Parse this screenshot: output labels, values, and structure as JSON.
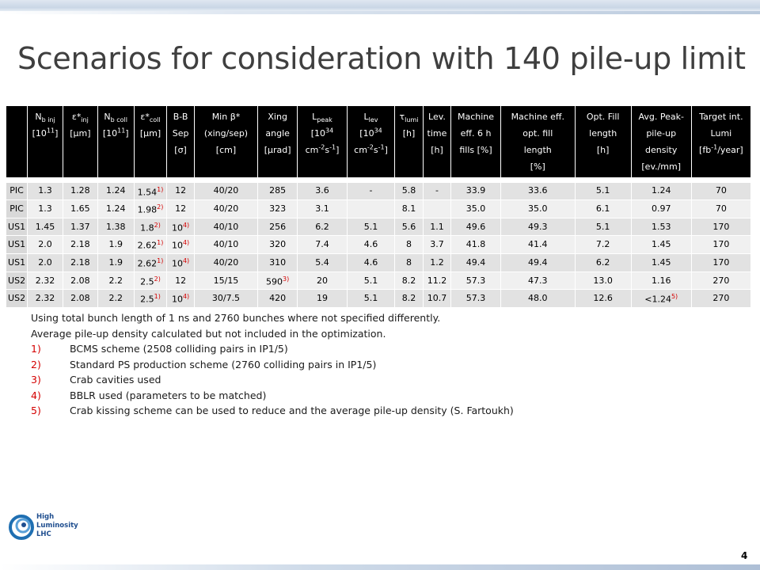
{
  "title": "Scenarios for consideration with 140 pile-up limit",
  "table": {
    "headers": [
      {
        "main": "",
        "parts": []
      },
      {
        "parts": [
          [
            "N",
            "b inj",
            ""
          ],
          [
            "[10",
            "",
            "11"
          ],
          [
            "]",
            "",
            ""
          ]
        ]
      },
      {
        "parts": [
          [
            "ε*",
            "inj",
            ""
          ],
          [
            "[μm]",
            "",
            ""
          ]
        ]
      },
      {
        "parts": [
          [
            "N",
            "b coll",
            ""
          ],
          [
            "[10",
            "",
            "11"
          ],
          [
            "]",
            "",
            ""
          ]
        ]
      },
      {
        "parts": [
          [
            "ε*",
            "coll",
            ""
          ],
          [
            "[μm]",
            "",
            ""
          ]
        ]
      },
      {
        "parts": [
          [
            "B-B",
            "",
            ""
          ],
          [
            "Sep",
            "",
            ""
          ],
          [
            "[σ]",
            "",
            ""
          ]
        ]
      },
      {
        "parts": [
          [
            "Min β*",
            "",
            ""
          ],
          [
            "(xing/sep)",
            "",
            ""
          ],
          [
            "[cm]",
            "",
            ""
          ]
        ]
      },
      {
        "parts": [
          [
            "Xing",
            "",
            ""
          ],
          [
            "angle",
            "",
            ""
          ],
          [
            "[μrad]",
            "",
            ""
          ]
        ]
      },
      {
        "parts": [
          [
            "L",
            "peak",
            ""
          ],
          [
            "[10",
            "",
            "34"
          ],
          [
            "cm",
            "",
            "-2"
          ],
          [
            "s",
            "",
            "-1"
          ],
          [
            "]",
            "",
            ""
          ]
        ]
      },
      {
        "parts": [
          [
            "L",
            "lev",
            ""
          ],
          [
            "[10",
            "",
            "34"
          ],
          [
            "cm",
            "",
            "-2"
          ],
          [
            "s",
            "",
            "-1"
          ],
          [
            "]",
            "",
            ""
          ]
        ]
      },
      {
        "parts": [
          [
            "τ",
            "lumi",
            ""
          ],
          [
            "[h]",
            "",
            ""
          ]
        ]
      },
      {
        "parts": [
          [
            "Lev.",
            "",
            ""
          ],
          [
            "time",
            "",
            ""
          ],
          [
            "[h]",
            "",
            ""
          ]
        ]
      },
      {
        "parts": [
          [
            "Machine",
            "",
            ""
          ],
          [
            "eff. 6 h",
            "",
            ""
          ],
          [
            "fills [%]",
            "",
            ""
          ]
        ]
      },
      {
        "parts": [
          [
            "Machine eff.",
            "",
            ""
          ],
          [
            "opt. fill",
            "",
            ""
          ],
          [
            "length",
            "",
            ""
          ],
          [
            "[%]",
            "",
            ""
          ]
        ]
      },
      {
        "parts": [
          [
            "Opt. Fill",
            "",
            ""
          ],
          [
            "length",
            "",
            ""
          ],
          [
            "[h]",
            "",
            ""
          ]
        ]
      },
      {
        "parts": [
          [
            "Avg. Peak-",
            "",
            ""
          ],
          [
            "pile-up",
            "",
            ""
          ],
          [
            "density",
            "",
            ""
          ],
          [
            "[ev./mm]",
            "",
            ""
          ]
        ]
      },
      {
        "parts": [
          [
            "Target int.",
            "",
            ""
          ],
          [
            "Lumi",
            "",
            ""
          ],
          [
            "[fb",
            "",
            "-1"
          ],
          [
            "/year]",
            "",
            ""
          ]
        ]
      }
    ],
    "rows": [
      [
        [
          "PIC",
          ""
        ],
        [
          "1.3",
          ""
        ],
        [
          "1.28",
          ""
        ],
        [
          "1.24",
          ""
        ],
        [
          "1.54",
          "1)"
        ],
        [
          "12",
          ""
        ],
        [
          "40/20",
          ""
        ],
        [
          "285",
          ""
        ],
        [
          "3.6",
          ""
        ],
        [
          "-",
          ""
        ],
        [
          "5.8",
          ""
        ],
        [
          "-",
          ""
        ],
        [
          "33.9",
          ""
        ],
        [
          "33.6",
          ""
        ],
        [
          "5.1",
          ""
        ],
        [
          "1.24",
          ""
        ],
        [
          "70",
          ""
        ]
      ],
      [
        [
          "PIC",
          ""
        ],
        [
          "1.3",
          ""
        ],
        [
          "1.65",
          ""
        ],
        [
          "1.24",
          ""
        ],
        [
          "1.98",
          "2)"
        ],
        [
          "12",
          ""
        ],
        [
          "40/20",
          ""
        ],
        [
          "323",
          ""
        ],
        [
          "3.1",
          ""
        ],
        [
          "",
          ""
        ],
        [
          "8.1",
          ""
        ],
        [
          "",
          ""
        ],
        [
          "35.0",
          ""
        ],
        [
          "35.0",
          ""
        ],
        [
          "6.1",
          ""
        ],
        [
          "0.97",
          ""
        ],
        [
          "70",
          ""
        ]
      ],
      [
        [
          "US1",
          ""
        ],
        [
          "1.45",
          ""
        ],
        [
          "1.37",
          ""
        ],
        [
          "1.38",
          ""
        ],
        [
          "1.8",
          "2)"
        ],
        [
          "10",
          "4)"
        ],
        [
          "40/10",
          ""
        ],
        [
          "256",
          ""
        ],
        [
          "6.2",
          ""
        ],
        [
          "5.1",
          ""
        ],
        [
          "5.6",
          ""
        ],
        [
          "1.1",
          ""
        ],
        [
          "49.6",
          ""
        ],
        [
          "49.3",
          ""
        ],
        [
          "5.1",
          ""
        ],
        [
          "1.53",
          ""
        ],
        [
          "170",
          ""
        ]
      ],
      [
        [
          "US1",
          ""
        ],
        [
          "2.0",
          ""
        ],
        [
          "2.18",
          ""
        ],
        [
          "1.9",
          ""
        ],
        [
          "2.62",
          "1)"
        ],
        [
          "10",
          "4)"
        ],
        [
          "40/10",
          ""
        ],
        [
          "320",
          ""
        ],
        [
          "7.4",
          ""
        ],
        [
          "4.6",
          ""
        ],
        [
          "8",
          ""
        ],
        [
          "3.7",
          ""
        ],
        [
          "41.8",
          ""
        ],
        [
          "41.4",
          ""
        ],
        [
          "7.2",
          ""
        ],
        [
          "1.45",
          ""
        ],
        [
          "170",
          ""
        ]
      ],
      [
        [
          "US1",
          ""
        ],
        [
          "2.0",
          ""
        ],
        [
          "2.18",
          ""
        ],
        [
          "1.9",
          ""
        ],
        [
          "2.62",
          "1)"
        ],
        [
          "10",
          "4)"
        ],
        [
          "40/20",
          ""
        ],
        [
          "310",
          ""
        ],
        [
          "5.4",
          ""
        ],
        [
          "4.6",
          ""
        ],
        [
          "8",
          ""
        ],
        [
          "1.2",
          ""
        ],
        [
          "49.4",
          ""
        ],
        [
          "49.4",
          ""
        ],
        [
          "6.2",
          ""
        ],
        [
          "1.45",
          ""
        ],
        [
          "170",
          ""
        ]
      ],
      [
        [
          "US2",
          ""
        ],
        [
          "2.32",
          ""
        ],
        [
          "2.08",
          ""
        ],
        [
          "2.2",
          ""
        ],
        [
          "2.5",
          "2)"
        ],
        [
          "12",
          ""
        ],
        [
          "15/15",
          ""
        ],
        [
          "590",
          "3)"
        ],
        [
          "20",
          ""
        ],
        [
          "5.1",
          ""
        ],
        [
          "8.2",
          ""
        ],
        [
          "11.2",
          ""
        ],
        [
          "57.3",
          ""
        ],
        [
          "47.3",
          ""
        ],
        [
          "13.0",
          ""
        ],
        [
          "1.16",
          ""
        ],
        [
          "270",
          ""
        ]
      ],
      [
        [
          "US2",
          ""
        ],
        [
          "2.32",
          ""
        ],
        [
          "2.08",
          ""
        ],
        [
          "2.2",
          ""
        ],
        [
          "2.5",
          "1)"
        ],
        [
          "10",
          "4)"
        ],
        [
          "30/7.5",
          ""
        ],
        [
          "420",
          ""
        ],
        [
          "19",
          ""
        ],
        [
          "5.1",
          ""
        ],
        [
          "8.2",
          ""
        ],
        [
          "10.7",
          ""
        ],
        [
          "57.3",
          ""
        ],
        [
          "48.0",
          ""
        ],
        [
          "12.6",
          ""
        ],
        [
          "<1.24",
          "5)"
        ],
        [
          "270",
          ""
        ]
      ]
    ]
  },
  "notes": {
    "line1": "Using total bunch length of 1 ns and 2760 bunches where not specified differently.",
    "line2": " Average pile-up density calculated but not included in the optimization.",
    "items": [
      {
        "num": "1)",
        "text": "BCMS scheme (2508 colliding pairs in IP1/5)"
      },
      {
        "num": "2)",
        "text": "Standard PS production scheme (2760 colliding pairs in IP1/5)"
      },
      {
        "num": "3)",
        "text": "Crab cavities used"
      },
      {
        "num": "4)",
        "text": "BBLR used (parameters to be matched)"
      },
      {
        "num": "5)",
        "text": "Crab kissing scheme can be used to reduce and the average pile-up density (S. Fartoukh)"
      }
    ]
  },
  "logo": {
    "line1": "High",
    "line2": "Luminosity",
    "line3": "LHC"
  },
  "page_number": "4",
  "colors": {
    "accent_red": "#d40000",
    "header_bg": "#000000",
    "title": "#3f3f3f"
  }
}
